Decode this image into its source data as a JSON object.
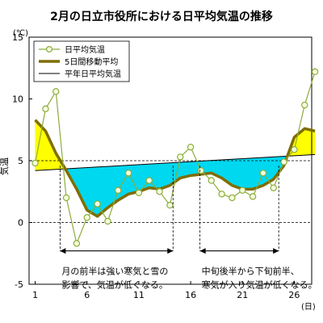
{
  "chart_data": {
    "type": "line",
    "title": "2月の日立市役所における日平均気温の推移",
    "ylabel": "気温",
    "yunit": "(℃)",
    "xunit": "(日)",
    "ylim": [
      -5,
      15
    ],
    "xlim": [
      1,
      29
    ],
    "yticks": [
      15,
      10,
      5,
      0,
      -5
    ],
    "xticks": [
      1,
      6,
      11,
      16,
      21,
      26
    ],
    "grid": "dashed horizontal at 5 and 0",
    "legend_placement": "top-left",
    "legend": [
      {
        "name": "日平均気温",
        "style": "line-with-circles"
      },
      {
        "name": "5日間移動平均",
        "style": "thick-line"
      },
      {
        "name": "平年日平均気温",
        "style": "thin-line"
      }
    ],
    "series": [
      {
        "name": "日平均気温",
        "color": "#8dab3c",
        "x": [
          1,
          2,
          3,
          4,
          5,
          6,
          7,
          8,
          9,
          10,
          11,
          12,
          13,
          14,
          15,
          16,
          17,
          18,
          19,
          20,
          21,
          22,
          23,
          24,
          25,
          26,
          27,
          28
        ],
        "values": [
          4.8,
          9.2,
          10.6,
          2.0,
          -1.7,
          0.4,
          1.5,
          0.1,
          2.6,
          4.0,
          2.4,
          3.4,
          2.5,
          1.4,
          5.3,
          6.1,
          4.2,
          3.4,
          2.3,
          2.0,
          2.6,
          2.1,
          4.0,
          2.8,
          4.9,
          5.9,
          9.5,
          12.2
        ]
      },
      {
        "name": "5日間移動平均",
        "color": "#7f6d00",
        "x": [
          1,
          2,
          3,
          4,
          5,
          6,
          7,
          8,
          9,
          10,
          11,
          12,
          13,
          14,
          15,
          16,
          17,
          18,
          19,
          20,
          21,
          22,
          23,
          24,
          25,
          26,
          27,
          28
        ],
        "values": [
          8.3,
          7.4,
          5.6,
          4.2,
          2.7,
          1.0,
          0.5,
          1.2,
          1.8,
          2.3,
          2.5,
          2.8,
          2.7,
          3.0,
          3.6,
          3.8,
          3.9,
          4.0,
          3.6,
          3.0,
          2.7,
          2.7,
          3.0,
          3.5,
          4.6,
          6.9,
          7.6,
          7.4
        ]
      },
      {
        "name": "平年日平均気温",
        "color": "#000000",
        "x": [
          1,
          28
        ],
        "values": [
          4.2,
          5.5
        ]
      }
    ],
    "fill_colors": {
      "above_normal": "#ffff00",
      "below_normal": "#00d8f0"
    },
    "annotations": [
      {
        "lines": [
          "月の前半は強い寒気と雪の",
          "影響で、気温が低くなる。"
        ],
        "span": [
          3.4,
          14.3
        ]
      },
      {
        "lines": [
          "中旬後半から下旬前半、",
          "寒気が入り気温が低くなる。"
        ],
        "span": [
          16.9,
          24.5
        ]
      }
    ]
  }
}
